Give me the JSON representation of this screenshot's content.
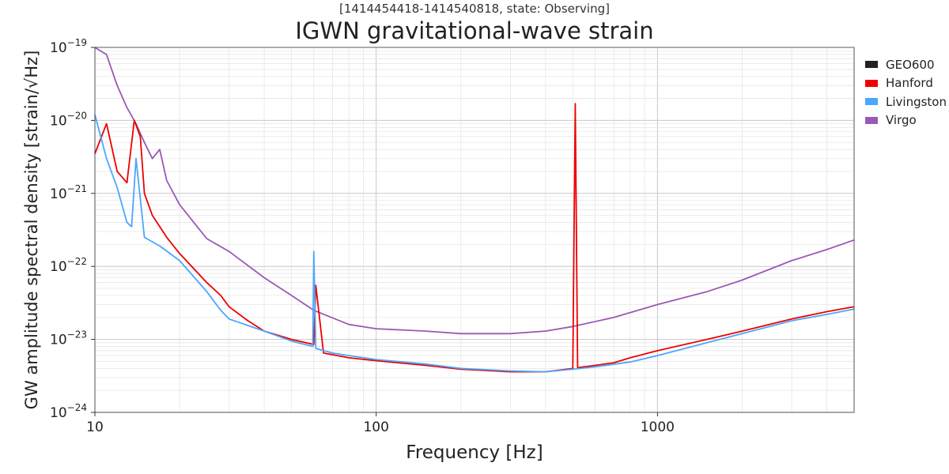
{
  "header": {
    "supertitle": "[1414454418-1414540818, state: Observing]",
    "title": "IGWN gravitational-wave strain"
  },
  "chart_data": {
    "type": "line",
    "title": "IGWN gravitational-wave strain",
    "subtitle": "[1414454418-1414540818, state: Observing]",
    "xlabel": "Frequency [Hz]",
    "ylabel": "GW amplitude spectral density [strain/√Hz]",
    "x_scale": "log",
    "y_scale": "log",
    "xlim": [
      10,
      5000
    ],
    "ylim": [
      1e-24,
      1e-19
    ],
    "x_ticks": [
      {
        "value": 10,
        "label": "10"
      },
      {
        "value": 100,
        "label": "100"
      },
      {
        "value": 1000,
        "label": "1000"
      }
    ],
    "y_ticks": [
      {
        "value": 1e-24,
        "base": "10",
        "exp": "−24"
      },
      {
        "value": 1e-23,
        "base": "10",
        "exp": "−23"
      },
      {
        "value": 1e-22,
        "base": "10",
        "exp": "−22"
      },
      {
        "value": 1e-21,
        "base": "10",
        "exp": "−21"
      },
      {
        "value": 1e-20,
        "base": "10",
        "exp": "−20"
      },
      {
        "value": 1e-19,
        "base": "10",
        "exp": "−19"
      }
    ],
    "grid": true,
    "legend_position": "outside-right",
    "series": [
      {
        "name": "GEO600",
        "color": "#222222",
        "points": []
      },
      {
        "name": "Hanford",
        "color": "#ee0000",
        "points": [
          [
            10,
            3.5e-21
          ],
          [
            11,
            9e-21
          ],
          [
            12,
            2e-21
          ],
          [
            13,
            1.4e-21
          ],
          [
            13.8,
            1e-20
          ],
          [
            14.5,
            6e-21
          ],
          [
            15,
            1e-21
          ],
          [
            16,
            5e-22
          ],
          [
            17,
            3.5e-22
          ],
          [
            18,
            2.5e-22
          ],
          [
            20,
            1.5e-22
          ],
          [
            25,
            6e-23
          ],
          [
            28,
            4e-23
          ],
          [
            30,
            2.8e-23
          ],
          [
            35,
            1.8e-23
          ],
          [
            40,
            1.3e-23
          ],
          [
            50,
            1e-23
          ],
          [
            60,
            8.5e-24
          ],
          [
            61,
            5.5e-23
          ],
          [
            65,
            6.5e-24
          ],
          [
            80,
            5.6e-24
          ],
          [
            100,
            5.1e-24
          ],
          [
            150,
            4.4e-24
          ],
          [
            200,
            3.9e-24
          ],
          [
            300,
            3.6e-24
          ],
          [
            400,
            3.6e-24
          ],
          [
            500,
            4e-24
          ],
          [
            510,
            1.7e-20
          ],
          [
            520,
            4.1e-24
          ],
          [
            600,
            4.4e-24
          ],
          [
            700,
            4.8e-24
          ],
          [
            800,
            5.6e-24
          ],
          [
            1000,
            7e-24
          ],
          [
            1500,
            1e-23
          ],
          [
            2000,
            1.3e-23
          ],
          [
            3000,
            1.9e-23
          ],
          [
            4000,
            2.4e-23
          ],
          [
            5000,
            2.8e-23
          ]
        ]
      },
      {
        "name": "Livingston",
        "color": "#4ba6ff",
        "points": [
          [
            10,
            1.2e-20
          ],
          [
            11,
            3e-21
          ],
          [
            12,
            1.2e-21
          ],
          [
            13,
            4e-22
          ],
          [
            13.5,
            3.5e-22
          ],
          [
            14,
            3e-21
          ],
          [
            15,
            2.5e-22
          ],
          [
            17,
            1.9e-22
          ],
          [
            20,
            1.2e-22
          ],
          [
            25,
            4.5e-23
          ],
          [
            28,
            2.5e-23
          ],
          [
            30,
            1.9e-23
          ],
          [
            40,
            1.3e-23
          ],
          [
            50,
            9.5e-24
          ],
          [
            59.5,
            8e-24
          ],
          [
            60,
            1.6e-22
          ],
          [
            61,
            7.5e-24
          ],
          [
            70,
            6.5e-24
          ],
          [
            80,
            6e-24
          ],
          [
            100,
            5.3e-24
          ],
          [
            150,
            4.6e-24
          ],
          [
            200,
            4e-24
          ],
          [
            300,
            3.7e-24
          ],
          [
            400,
            3.6e-24
          ],
          [
            500,
            3.9e-24
          ],
          [
            600,
            4.2e-24
          ],
          [
            800,
            4.9e-24
          ],
          [
            1000,
            6e-24
          ],
          [
            1500,
            9e-24
          ],
          [
            2000,
            1.2e-23
          ],
          [
            3000,
            1.8e-23
          ],
          [
            4000,
            2.2e-23
          ],
          [
            5000,
            2.6e-23
          ]
        ]
      },
      {
        "name": "Virgo",
        "color": "#9b59b6",
        "points": [
          [
            10,
            1e-19
          ],
          [
            11,
            8e-20
          ],
          [
            12,
            3e-20
          ],
          [
            13,
            1.5e-20
          ],
          [
            14,
            9e-21
          ],
          [
            15,
            5e-21
          ],
          [
            16,
            3e-21
          ],
          [
            17,
            4e-21
          ],
          [
            18,
            1.5e-21
          ],
          [
            20,
            7e-22
          ],
          [
            25,
            2.4e-22
          ],
          [
            30,
            1.6e-22
          ],
          [
            40,
            7e-23
          ],
          [
            50,
            4e-23
          ],
          [
            60,
            2.5e-23
          ],
          [
            80,
            1.6e-23
          ],
          [
            100,
            1.4e-23
          ],
          [
            150,
            1.3e-23
          ],
          [
            200,
            1.2e-23
          ],
          [
            300,
            1.2e-23
          ],
          [
            400,
            1.3e-23
          ],
          [
            500,
            1.5e-23
          ],
          [
            700,
            2e-23
          ],
          [
            1000,
            3e-23
          ],
          [
            1500,
            4.5e-23
          ],
          [
            2000,
            6.5e-23
          ],
          [
            3000,
            1.2e-22
          ],
          [
            4000,
            1.7e-22
          ],
          [
            5000,
            2.3e-22
          ]
        ]
      }
    ]
  }
}
